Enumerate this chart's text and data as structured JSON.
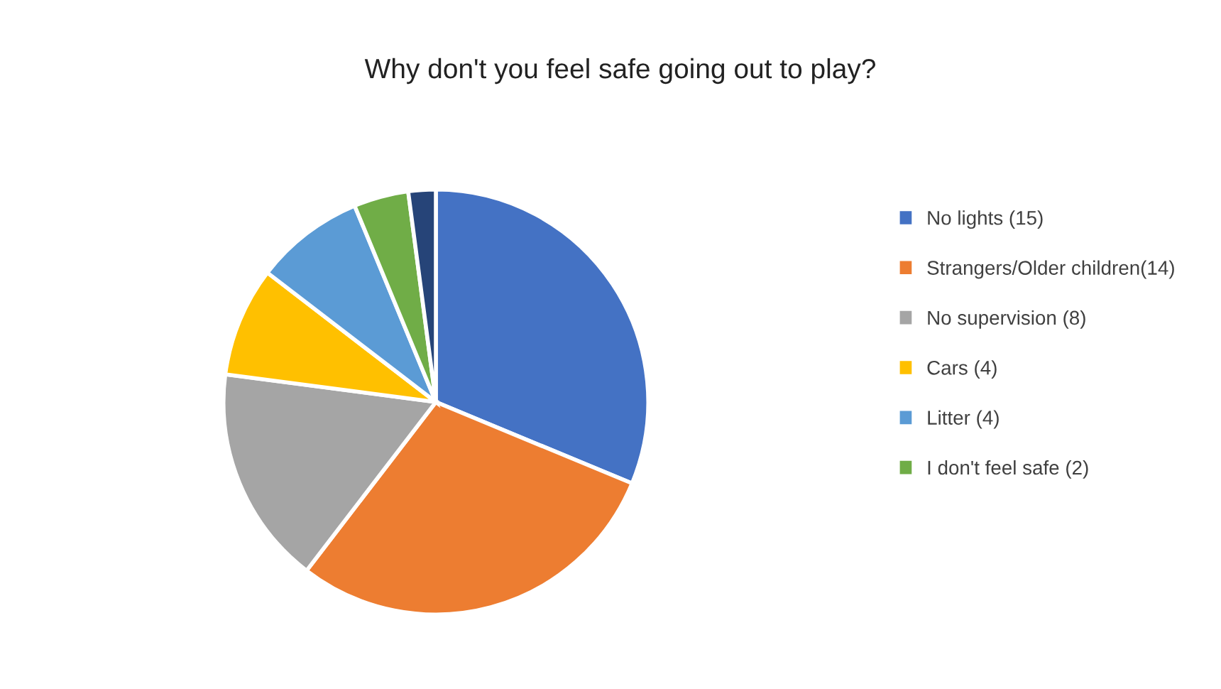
{
  "chart_data": {
    "type": "pie",
    "title": "Why don't you feel safe going out to play?",
    "categories": [
      "No lights (15)",
      "Strangers/Older children(14)",
      "No supervision (8)",
      "Cars (4)",
      "Litter (4)",
      "I don't feel safe (2)",
      null
    ],
    "values": [
      15,
      14,
      8,
      4,
      4,
      2,
      1
    ],
    "colors": [
      "#4472c4",
      "#ed7d31",
      "#a5a5a5",
      "#ffc000",
      "#5b9bd5",
      "#70ad47",
      "#264478"
    ],
    "legend": "right"
  }
}
